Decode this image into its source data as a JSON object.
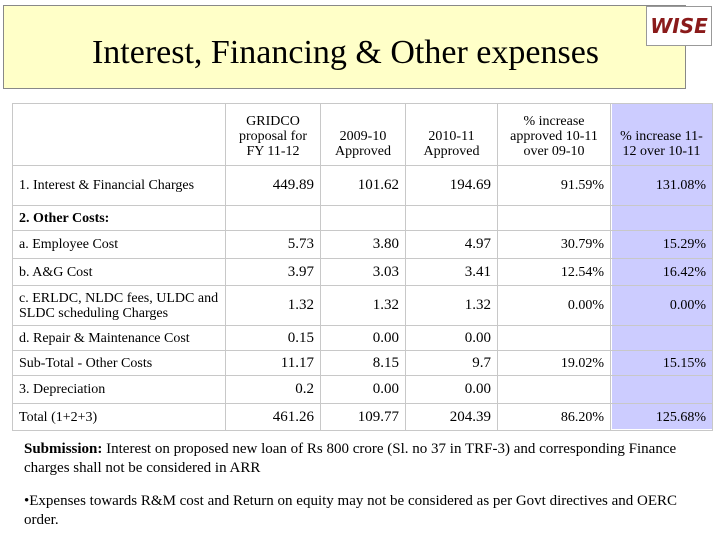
{
  "header": {
    "title": "Interest, Financing & Other expenses",
    "logo": "WISE"
  },
  "table": {
    "columns": [
      null,
      "GRIDCO proposal for FY 11-12",
      "2009-10 Approved",
      "2010-11 Approved",
      "% increase approved 10-11 over 09-10",
      "% increase 11-12 over 10-11"
    ],
    "rows": [
      [
        "1. Interest & Financial Charges",
        "449.89",
        "101.62",
        "194.69",
        "91.59%",
        "131.08%"
      ],
      [
        "2. Other Costs:",
        null,
        null,
        null,
        null,
        null
      ],
      [
        "a. Employee Cost",
        "5.73",
        "3.80",
        "4.97",
        "30.79%",
        "15.29%"
      ],
      [
        "b. A&G Cost",
        "3.97",
        "3.03",
        "3.41",
        "12.54%",
        "16.42%"
      ],
      [
        "c. ERLDC, NLDC fees, ULDC and SLDC scheduling Charges",
        "1.32",
        "1.32",
        "1.32",
        "0.00%",
        "0.00%"
      ],
      [
        "d. Repair & Maintenance Cost",
        "0.15",
        "0.00",
        "0.00",
        null,
        null
      ],
      [
        "Sub-Total - Other Costs",
        "11.17",
        "8.15",
        "9.7",
        "19.02%",
        "15.15%"
      ],
      [
        "3.  Depreciation",
        "0.2",
        "0.00",
        "0.00",
        null,
        null
      ],
      [
        "Total (1+2+3)",
        "461.26",
        "109.77",
        "204.39",
        "86.20%",
        "125.68%"
      ]
    ]
  },
  "notes": {
    "submission_label": "Submission:",
    "submission_text": "Interest on proposed new loan of Rs 800 crore (Sl. no 37 in TRF-3) and corresponding Finance charges shall not be considered in ARR",
    "bullet": "•Expenses towards R&M cost and Return on equity may not be considered as per Govt directives and OERC order."
  }
}
